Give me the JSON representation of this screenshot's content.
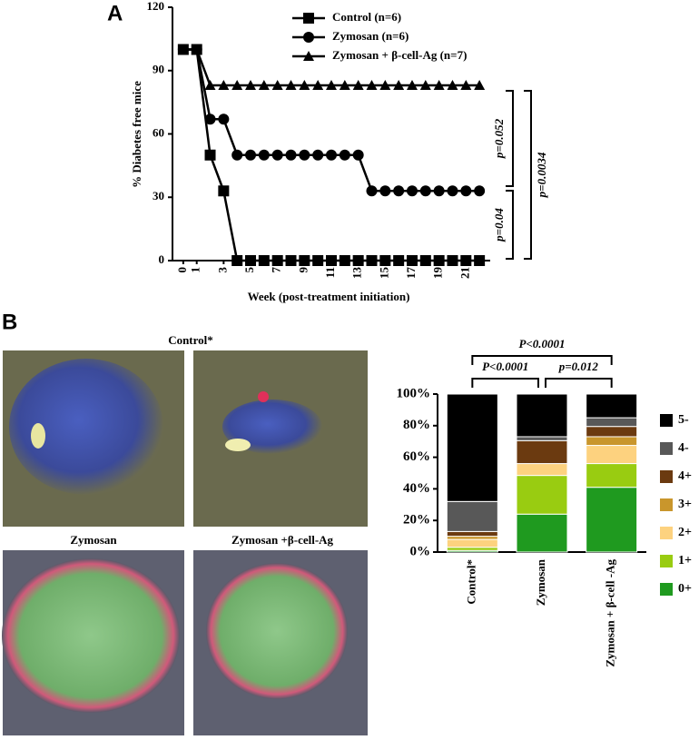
{
  "panel_labels": [
    "A",
    "B"
  ],
  "image_captions": [
    "Control*",
    "Zymosan",
    "Zymosan +β-cell-Ag"
  ],
  "chart_data": [
    {
      "type": "line",
      "xlabel": "Week (post-treatment  initiation)",
      "ylabel": "% Diabetes free mice",
      "x": [
        0,
        1,
        2,
        3,
        4,
        5,
        6,
        7,
        8,
        9,
        10,
        11,
        12,
        13,
        14,
        15,
        16,
        17,
        18,
        19,
        20,
        21,
        22
      ],
      "xlim": [
        -0.8,
        22.8
      ],
      "xticks": [
        0,
        1,
        3,
        5,
        7,
        9,
        11,
        13,
        15,
        17,
        19,
        21
      ],
      "ylim": [
        0,
        120
      ],
      "yticks": [
        0,
        30,
        60,
        90,
        120
      ],
      "series": [
        {
          "name": "Control (n=6)",
          "color": "#000000",
          "marker": "square",
          "values": [
            100,
            100,
            50,
            33,
            0,
            0,
            0,
            0,
            0,
            0,
            0,
            0,
            0,
            0,
            0,
            0,
            0,
            0,
            0,
            0,
            0,
            0,
            0
          ]
        },
        {
          "name": "Zymosan (n=6)",
          "color": "#000000",
          "marker": "circle",
          "values": [
            100,
            100,
            67,
            67,
            50,
            50,
            50,
            50,
            50,
            50,
            50,
            50,
            50,
            50,
            33,
            33,
            33,
            33,
            33,
            33,
            33,
            33,
            33
          ]
        },
        {
          "name": "Zymosan + β-cell-Ag  (n=7)",
          "color": "#000000",
          "marker": "triangle",
          "values": [
            100,
            100,
            83,
            83,
            83,
            83,
            83,
            83,
            83,
            83,
            83,
            83,
            83,
            83,
            83,
            83,
            83,
            83,
            83,
            83,
            83,
            83,
            83
          ]
        }
      ],
      "annotations": [
        "p=0.052",
        "p=0.04",
        "p=0.0034"
      ]
    },
    {
      "type": "stacked-bar",
      "categories": [
        "Control*",
        "Zymosan",
        "Zymosan + β-cell -Ag"
      ],
      "ylim": [
        0,
        100
      ],
      "yticks": [
        {
          "value": 0,
          "label": "0%"
        },
        {
          "value": 20,
          "label": "20%"
        },
        {
          "value": 40,
          "label": "40%"
        },
        {
          "value": 60,
          "label": "60%"
        },
        {
          "value": 80,
          "label": "80%"
        },
        {
          "value": 100,
          "label": "100%"
        }
      ],
      "series": [
        {
          "name": "0+",
          "color": "#1f9a1f",
          "values": [
            1,
            24,
            41
          ]
        },
        {
          "name": "1+",
          "color": "#99cc11",
          "values": [
            2,
            24.5,
            15
          ]
        },
        {
          "name": "2+",
          "color": "#fdd27f",
          "values": [
            5,
            7.5,
            11.5
          ]
        },
        {
          "name": "3+",
          "color": "#c9962c",
          "values": [
            2,
            0,
            5.5
          ]
        },
        {
          "name": "4+",
          "color": "#6b3a10",
          "values": [
            3,
            14.5,
            6.5
          ]
        },
        {
          "name": "4-",
          "color": "#585858",
          "values": [
            19,
            2.5,
            5.5
          ]
        },
        {
          "name": "5-",
          "color": "#000000",
          "values": [
            68,
            27,
            15
          ]
        }
      ],
      "annotations": [
        "P<0.0001",
        "P<0.0001",
        "p=0.012"
      ]
    }
  ]
}
